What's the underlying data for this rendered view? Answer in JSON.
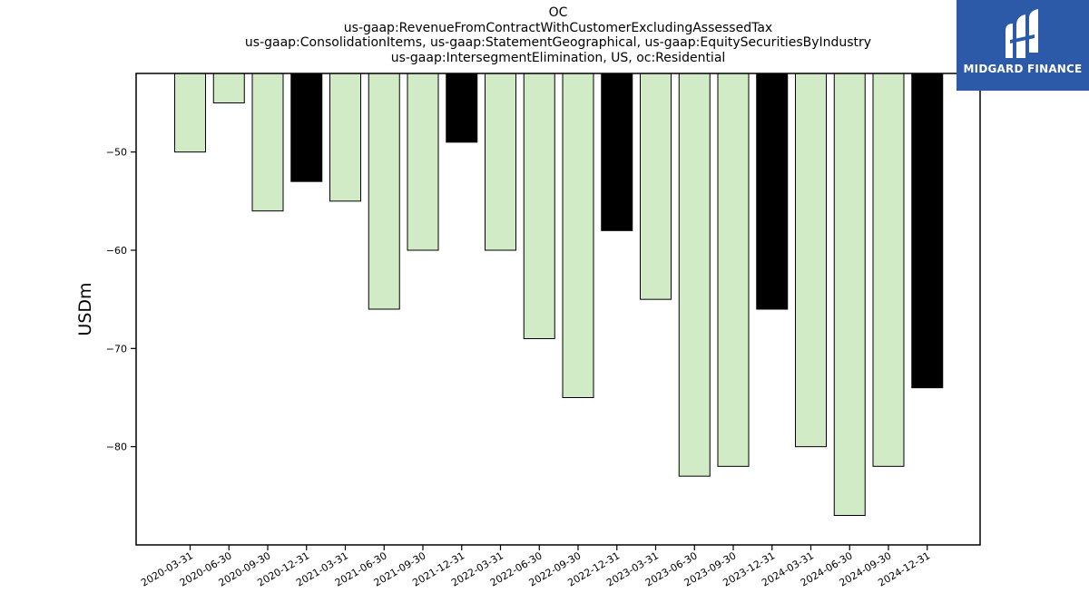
{
  "chart_data": {
    "type": "bar",
    "title_lines": [
      "OC",
      "us-gaap:RevenueFromContractWithCustomerExcludingAssessedTax",
      "us-gaap:ConsolidationItems, us-gaap:StatementGeographical, us-gaap:EquitySecuritiesByIndustry",
      "us-gaap:IntersegmentElimination, US, oc:Residential"
    ],
    "ylabel": "USDm",
    "xlabel": "",
    "ylim": [
      -90,
      -42
    ],
    "yticks": [
      -50,
      -60,
      -70,
      -80
    ],
    "ytick_labels": [
      "−50",
      "−60",
      "−70",
      "−80"
    ],
    "categories": [
      "2020-03-31",
      "2020-06-30",
      "2020-09-30",
      "2020-12-31",
      "2021-03-31",
      "2021-06-30",
      "2021-09-30",
      "2021-12-31",
      "2022-03-31",
      "2022-06-30",
      "2022-09-30",
      "2022-12-31",
      "2023-03-31",
      "2023-06-30",
      "2023-09-30",
      "2023-12-31",
      "2024-03-31",
      "2024-06-30",
      "2024-09-30",
      "2024-12-31"
    ],
    "values": [
      -50,
      -45,
      -56,
      -53,
      -55,
      -66,
      -60,
      -49,
      -60,
      -69,
      -75,
      -58,
      -65,
      -83,
      -82,
      -66,
      -80,
      -87,
      -82,
      -74
    ],
    "bar_colors": [
      "#d0ebc6",
      "#d0ebc6",
      "#d0ebc6",
      "#000000",
      "#d0ebc6",
      "#d0ebc6",
      "#d0ebc6",
      "#000000",
      "#d0ebc6",
      "#d0ebc6",
      "#d0ebc6",
      "#000000",
      "#d0ebc6",
      "#d0ebc6",
      "#d0ebc6",
      "#000000",
      "#d0ebc6",
      "#d0ebc6",
      "#d0ebc6",
      "#000000"
    ],
    "grid": false,
    "legend": "none"
  },
  "logo": {
    "text": "MIDGARD FINANCE",
    "background": "#2d5aa8"
  }
}
